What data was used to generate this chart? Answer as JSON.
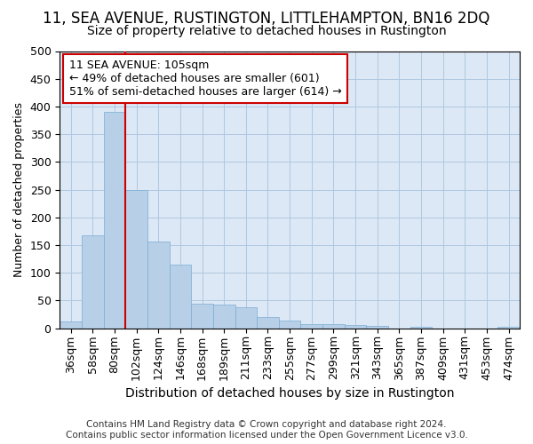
{
  "title": "11, SEA AVENUE, RUSTINGTON, LITTLEHAMPTON, BN16 2DQ",
  "subtitle": "Size of property relative to detached houses in Rustington",
  "xlabel": "Distribution of detached houses by size in Rustington",
  "ylabel": "Number of detached properties",
  "categories": [
    "36sqm",
    "58sqm",
    "80sqm",
    "102sqm",
    "124sqm",
    "146sqm",
    "168sqm",
    "189sqm",
    "211sqm",
    "233sqm",
    "255sqm",
    "277sqm",
    "299sqm",
    "321sqm",
    "343sqm",
    "365sqm",
    "387sqm",
    "409sqm",
    "431sqm",
    "453sqm",
    "474sqm"
  ],
  "values": [
    12,
    167,
    390,
    250,
    157,
    115,
    44,
    42,
    38,
    20,
    14,
    8,
    7,
    5,
    4,
    0,
    3,
    0,
    0,
    0,
    3
  ],
  "bar_color": "#b8cfe8",
  "bar_edge_color": "#7aadd4",
  "vline_index": 3,
  "vline_color": "#cc0000",
  "annotation_text": "11 SEA AVENUE: 105sqm\n← 49% of detached houses are smaller (601)\n51% of semi-detached houses are larger (614) →",
  "annotation_box_color": "#ffffff",
  "annotation_box_edge": "#cc0000",
  "annotation_fontsize": 9,
  "footer": "Contains HM Land Registry data © Crown copyright and database right 2024.\nContains public sector information licensed under the Open Government Licence v3.0.",
  "title_fontsize": 12,
  "subtitle_fontsize": 10,
  "xlabel_fontsize": 10,
  "ylabel_fontsize": 9,
  "tick_fontsize": 9,
  "footer_fontsize": 7.5,
  "ylim": [
    0,
    500
  ],
  "yticks": [
    0,
    50,
    100,
    150,
    200,
    250,
    300,
    350,
    400,
    450,
    500
  ],
  "plot_bg_color": "#dce8f5",
  "background_color": "#ffffff",
  "grid_color": "#afc8e0"
}
